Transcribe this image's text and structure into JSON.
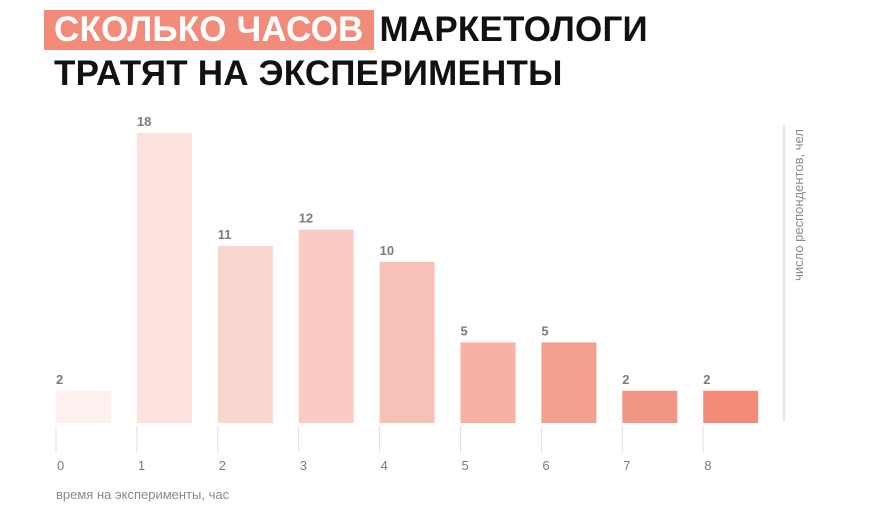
{
  "title": {
    "highlight": "СКОЛЬКО ЧАСОВ",
    "rest": "МАРКЕТОЛОГИ",
    "line2": "ТРАТЯТ НА ЭКСПЕРИМЕНТЫ"
  },
  "colors": {
    "accent": "#f28b7a",
    "bars": [
      "#fdf0ee",
      "#fce3df",
      "#fbd6d0",
      "#f9cbc3",
      "#f8c1b8",
      "#f6b0a4",
      "#f4a090",
      "#f29585",
      "#f28b7a"
    ]
  },
  "chart_data": {
    "type": "bar",
    "categories": [
      "0",
      "1",
      "2",
      "3",
      "4",
      "5",
      "6",
      "7",
      "8"
    ],
    "values": [
      2,
      18,
      11,
      12,
      10,
      5,
      5,
      2,
      2
    ],
    "xlabel": "время на эксперименты, час",
    "ylabel": "число респондентов, чел",
    "ylim": [
      0,
      18
    ],
    "grid": false,
    "legend": "none"
  }
}
